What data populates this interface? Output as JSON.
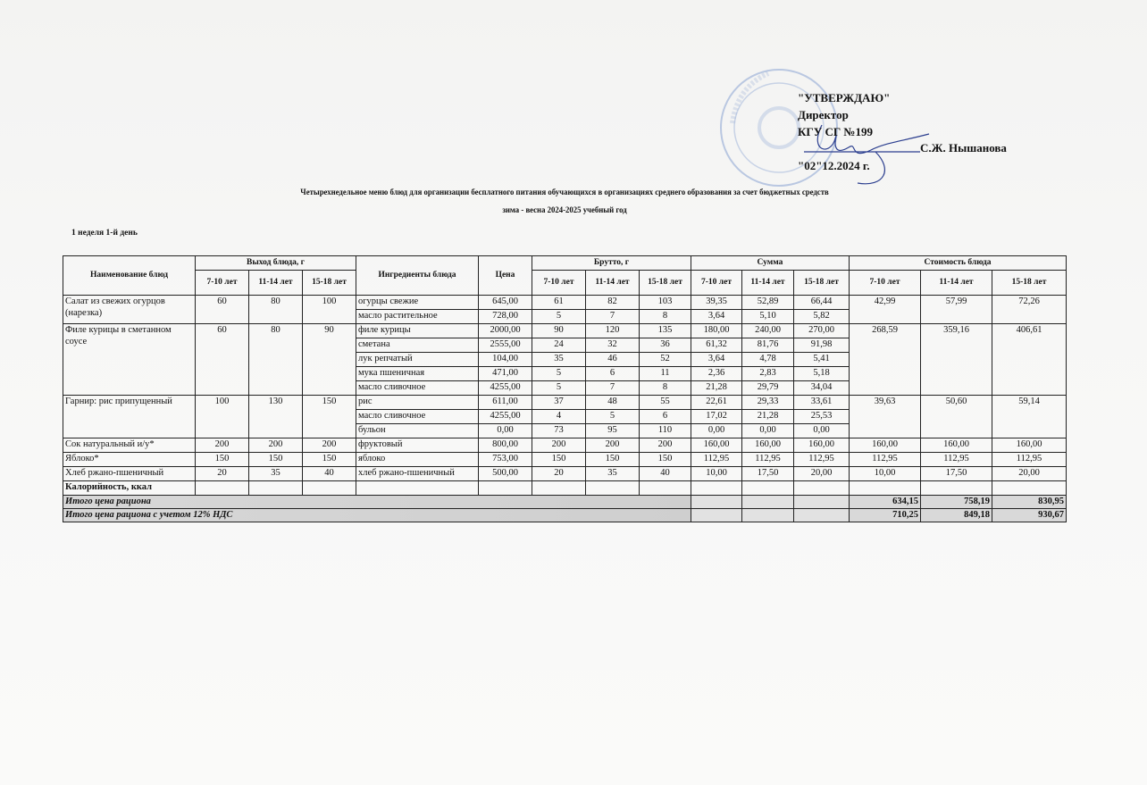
{
  "approval": {
    "line1": "\"УТВЕРЖДАЮ\"",
    "line2": "Директор",
    "line3": "КГУ СГ №199",
    "signer": "С.Ж. Нышанова",
    "date": "\"02\"12.2024 г."
  },
  "title": "Четырехнедельное меню блюд для организации бесплатного питания обучающихся в организациях среднего образования за счет бюджетных средств",
  "subtitle": "зима - весна 2024-2025 учебный год",
  "week_day": "1 неделя 1-й день",
  "headers": {
    "dish": "Наименование блюд",
    "yield": "Выход блюда, г",
    "ingredients": "Ингредиенты блюда",
    "price": "Цена",
    "brutto": "Брутто, г",
    "sum": "Сумма",
    "cost": "Стоимость блюда",
    "ages": [
      "7-10 лет",
      "11-14 лет",
      "15-18 лет"
    ]
  },
  "dishes": [
    {
      "name": "Салат из свежих огурцов (нарезка)",
      "yield": [
        "60",
        "80",
        "100"
      ],
      "cost": [
        "42,99",
        "57,99",
        "72,26"
      ],
      "ingredients": [
        {
          "name": "огурцы свежие",
          "price": "645,00",
          "brutto": [
            "61",
            "82",
            "103"
          ],
          "sum": [
            "39,35",
            "52,89",
            "66,44"
          ]
        },
        {
          "name": "масло растительное",
          "price": "728,00",
          "brutto": [
            "5",
            "7",
            "8"
          ],
          "sum": [
            "3,64",
            "5,10",
            "5,82"
          ]
        }
      ]
    },
    {
      "name": "Филе курицы в сметанном соусе",
      "yield": [
        "60",
        "80",
        "90"
      ],
      "cost": [
        "268,59",
        "359,16",
        "406,61"
      ],
      "ingredients": [
        {
          "name": "филе курицы",
          "price": "2000,00",
          "brutto": [
            "90",
            "120",
            "135"
          ],
          "sum": [
            "180,00",
            "240,00",
            "270,00"
          ]
        },
        {
          "name": "сметана",
          "price": "2555,00",
          "brutto": [
            "24",
            "32",
            "36"
          ],
          "sum": [
            "61,32",
            "81,76",
            "91,98"
          ]
        },
        {
          "name": "лук репчатый",
          "price": "104,00",
          "brutto": [
            "35",
            "46",
            "52"
          ],
          "sum": [
            "3,64",
            "4,78",
            "5,41"
          ]
        },
        {
          "name": "мука пшеничная",
          "price": "471,00",
          "brutto": [
            "5",
            "6",
            "11"
          ],
          "sum": [
            "2,36",
            "2,83",
            "5,18"
          ]
        },
        {
          "name": "масло сливочное",
          "price": "4255,00",
          "brutto": [
            "5",
            "7",
            "8"
          ],
          "sum": [
            "21,28",
            "29,79",
            "34,04"
          ]
        }
      ]
    },
    {
      "name": "Гарнир: рис припущенный",
      "yield": [
        "100",
        "130",
        "150"
      ],
      "cost": [
        "39,63",
        "50,60",
        "59,14"
      ],
      "ingredients": [
        {
          "name": "рис",
          "price": "611,00",
          "brutto": [
            "37",
            "48",
            "55"
          ],
          "sum": [
            "22,61",
            "29,33",
            "33,61"
          ]
        },
        {
          "name": "масло сливочное",
          "price": "4255,00",
          "brutto": [
            "4",
            "5",
            "6"
          ],
          "sum": [
            "17,02",
            "21,28",
            "25,53"
          ]
        },
        {
          "name": "бульон",
          "price": "0,00",
          "brutto": [
            "73",
            "95",
            "110"
          ],
          "sum": [
            "0,00",
            "0,00",
            "0,00"
          ]
        }
      ]
    },
    {
      "name": "Сок натуральный и/у*",
      "yield": [
        "200",
        "200",
        "200"
      ],
      "cost": [
        "160,00",
        "160,00",
        "160,00"
      ],
      "ingredients": [
        {
          "name": "фруктовый",
          "price": "800,00",
          "brutto": [
            "200",
            "200",
            "200"
          ],
          "sum": [
            "160,00",
            "160,00",
            "160,00"
          ]
        }
      ]
    },
    {
      "name": "Яблоко*",
      "yield": [
        "150",
        "150",
        "150"
      ],
      "cost": [
        "112,95",
        "112,95",
        "112,95"
      ],
      "ingredients": [
        {
          "name": "яблоко",
          "price": "753,00",
          "brutto": [
            "150",
            "150",
            "150"
          ],
          "sum": [
            "112,95",
            "112,95",
            "112,95"
          ]
        }
      ]
    },
    {
      "name": "Хлеб ржано-пшеничный",
      "yield": [
        "20",
        "35",
        "40"
      ],
      "cost": [
        "10,00",
        "17,50",
        "20,00"
      ],
      "ingredients": [
        {
          "name": "хлеб ржано-пшеничный",
          "price": "500,00",
          "brutto": [
            "20",
            "35",
            "40"
          ],
          "sum": [
            "10,00",
            "17,50",
            "20,00"
          ]
        }
      ]
    }
  ],
  "calories_label": "Калорийность, ккал",
  "totals": [
    {
      "label": "Итого цена рациона",
      "values": [
        "634,15",
        "758,19",
        "830,95"
      ]
    },
    {
      "label": "Итого цена рациона с учетом 12% НДС",
      "values": [
        "710,25",
        "849,18",
        "930,67"
      ]
    }
  ],
  "colors": {
    "stamp": "#8fa6d0",
    "ink": "#2c3f8f"
  }
}
